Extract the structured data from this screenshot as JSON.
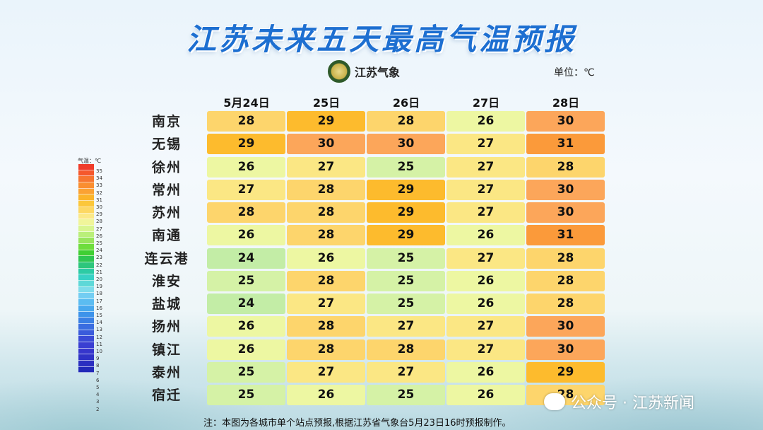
{
  "title": "江苏未来五天最高气温预报",
  "logo": {
    "text": "江苏气象",
    "icon": "jiangsu-meteorology-emblem-icon"
  },
  "unit": "单位：℃",
  "days": [
    "5月24日",
    "25日",
    "26日",
    "27日",
    "28日"
  ],
  "cities": [
    "南京",
    "无锡",
    "徐州",
    "常州",
    "苏州",
    "南通",
    "连云港",
    "淮安",
    "盐城",
    "扬州",
    "镇江",
    "泰州",
    "宿迁"
  ],
  "temps": [
    [
      28,
      29,
      28,
      26,
      30
    ],
    [
      29,
      30,
      30,
      27,
      31
    ],
    [
      26,
      27,
      25,
      27,
      28
    ],
    [
      27,
      28,
      29,
      27,
      30
    ],
    [
      28,
      28,
      29,
      27,
      30
    ],
    [
      26,
      28,
      29,
      26,
      31
    ],
    [
      24,
      26,
      25,
      27,
      28
    ],
    [
      25,
      28,
      25,
      26,
      28
    ],
    [
      24,
      27,
      25,
      26,
      28
    ],
    [
      26,
      28,
      27,
      27,
      30
    ],
    [
      26,
      28,
      28,
      27,
      30
    ],
    [
      25,
      27,
      27,
      26,
      29
    ],
    [
      25,
      26,
      25,
      26,
      28
    ]
  ],
  "temp_colors": {
    "24": "#c3eda6",
    "25": "#d5f2a6",
    "26": "#edf7a2",
    "27": "#fbe784",
    "28": "#fdd56c",
    "29": "#fdbb2d",
    "30": "#fca65a",
    "31": "#fb9a3a"
  },
  "legend": {
    "title": "气温：℃",
    "ticks": [
      "35",
      "34",
      "33",
      "32",
      "31",
      "30",
      "29",
      "28",
      "27",
      "26",
      "25",
      "24",
      "23",
      "22",
      "21",
      "20",
      "19",
      "18",
      "17",
      "16",
      "15",
      "14",
      "13",
      "12",
      "11",
      "10",
      "9",
      "8",
      "7",
      "6",
      "5",
      "4",
      "3",
      "2"
    ],
    "colors": [
      "#f03c2a",
      "#f5582c",
      "#f77630",
      "#fa8e30",
      "#fba233",
      "#fbb42a",
      "#fcc73a",
      "#fdd864",
      "#fbe988",
      "#f0f59a",
      "#d8f590",
      "#baef7a",
      "#98e55d",
      "#6edd3d",
      "#3fcf33",
      "#2ec652",
      "#2cc67c",
      "#2ccba5",
      "#37d1c5",
      "#5ed8d8",
      "#7fdceb",
      "#73cdf2",
      "#5bbcf1",
      "#48a8ee",
      "#3d93ea",
      "#3a80e4",
      "#3a6de0",
      "#3a5bdb",
      "#3a4ad6",
      "#3a3fd2",
      "#3636cc",
      "#2f32c6",
      "#2a2ec0",
      "#2229b8"
    ]
  },
  "footnote": "注：本图为各城市单个站点预报,根据江苏省气象台5月23日16时预报制作。",
  "watermark": {
    "text": "公众号 · 江苏新闻",
    "icon": "wechat-icon"
  }
}
